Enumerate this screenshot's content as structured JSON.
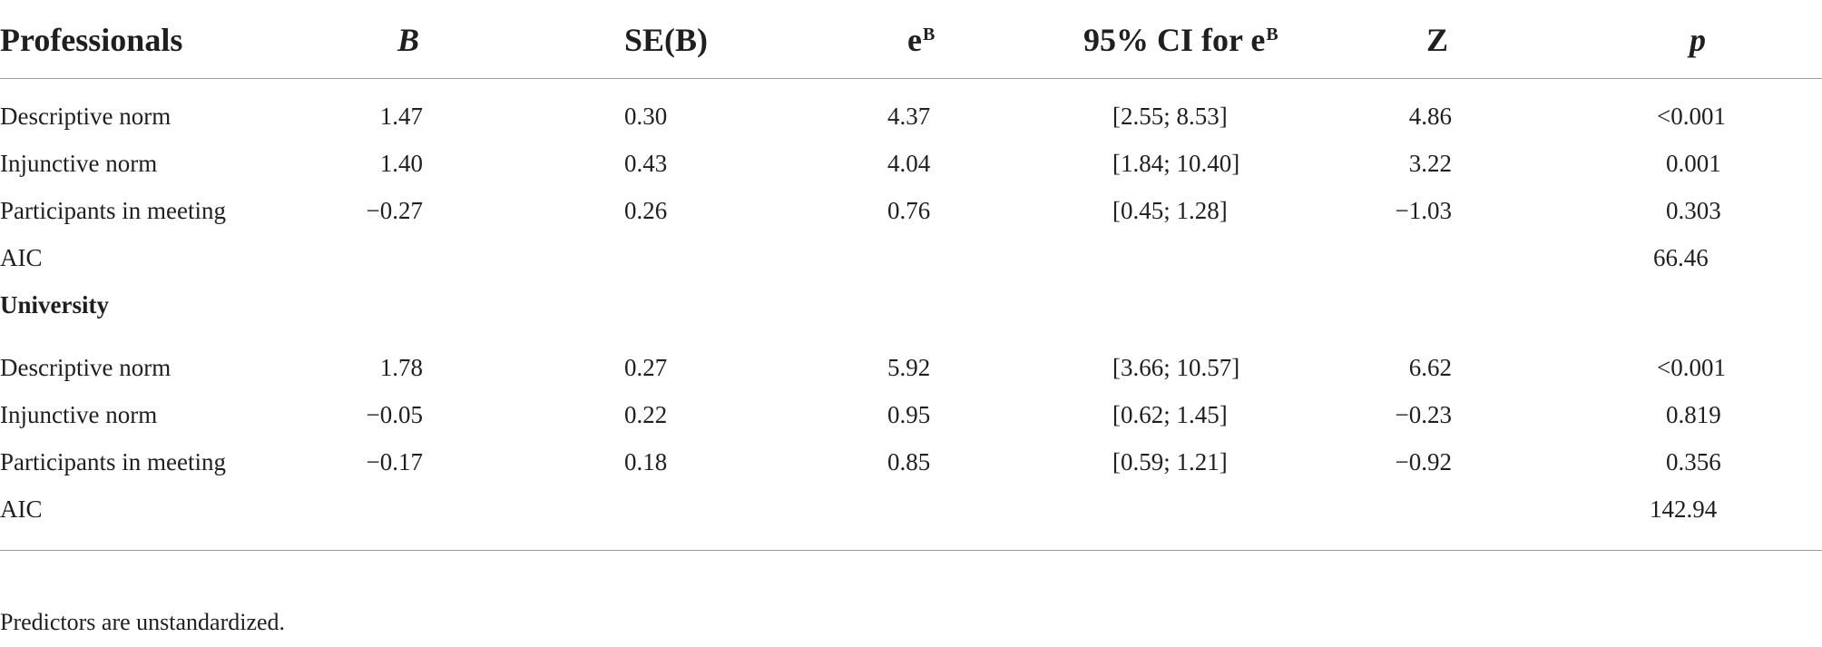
{
  "table": {
    "headers": {
      "label": "Professionals",
      "b": "B",
      "se": "SE(B)",
      "eb_base": "e",
      "eb_sup": "B",
      "ci_prefix": "95% CI for e",
      "ci_sup": "B",
      "z": "Z",
      "p": "p"
    },
    "professionals": [
      {
        "label": "Descriptive norm",
        "b": "1.47",
        "se": "0.30",
        "eb": "4.37",
        "ci": "[2.55; 8.53]",
        "z": "4.86",
        "p": "<0.001"
      },
      {
        "label": "Injunctive norm",
        "b": "1.40",
        "se": "0.43",
        "eb": "4.04",
        "ci": "[1.84; 10.40]",
        "z": "3.22",
        "p": "0.001"
      },
      {
        "label": "Participants in meeting",
        "b": "−0.27",
        "se": "0.26",
        "eb": "0.76",
        "ci": "[0.45; 1.28]",
        "z": "−1.03",
        "p": "0.303"
      }
    ],
    "professionals_aic": {
      "label": "AIC",
      "value": "66.46"
    },
    "university_label": "University",
    "university": [
      {
        "label": "Descriptive norm",
        "b": "1.78",
        "se": "0.27",
        "eb": "5.92",
        "ci": "[3.66; 10.57]",
        "z": "6.62",
        "p": "<0.001"
      },
      {
        "label": "Injunctive norm",
        "b": "−0.05",
        "se": "0.22",
        "eb": "0.95",
        "ci": "[0.62; 1.45]",
        "z": "−0.23",
        "p": "0.819"
      },
      {
        "label": "Participants in meeting",
        "b": "−0.17",
        "se": "0.18",
        "eb": "0.85",
        "ci": "[0.59; 1.21]",
        "z": "−0.92",
        "p": "0.356"
      }
    ],
    "university_aic": {
      "label": "AIC",
      "value": "142.94"
    }
  },
  "footnote": "Predictors are unstandardized."
}
